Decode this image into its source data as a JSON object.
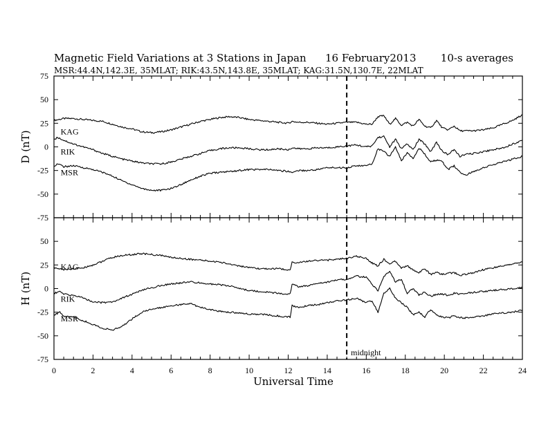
{
  "chart_data": {
    "type": "line",
    "title": "Magnetic Field Variations at 3 Stations in Japan",
    "date": "16  February2013",
    "averaging": "10-s averages",
    "subtitle": "MSR:44.4N,142.3E, 35MLAT;   RIK:43.5N,143.8E, 35MLAT;   KAG:31.5N,130.7E, 22MLAT",
    "xlabel": "Universal Time",
    "xlim": [
      0,
      24
    ],
    "xticks": [
      0,
      2,
      4,
      6,
      8,
      10,
      12,
      14,
      16,
      18,
      20,
      22,
      24
    ],
    "marker": {
      "x": 15,
      "label": "midnight"
    },
    "panels": [
      {
        "ylabel": "D (nT)",
        "ylim": [
          -75,
          75
        ],
        "yticks": [
          -75,
          -50,
          -25,
          0,
          25,
          50,
          75
        ],
        "series": [
          {
            "name": "KAG",
            "label_x": 0.2,
            "label_y": 16,
            "x": [
              0,
              0.5,
              1,
              1.5,
              2,
              2.5,
              3,
              3.5,
              4,
              4.5,
              5,
              5.5,
              6,
              6.5,
              7,
              7.5,
              8,
              8.5,
              9,
              9.5,
              10,
              10.5,
              11,
              11.5,
              12,
              12.2,
              12.5,
              13,
              13.5,
              14,
              14.5,
              15,
              15.5,
              16,
              16.3,
              16.6,
              16.9,
              17.2,
              17.5,
              17.8,
              18.1,
              18.4,
              18.7,
              19,
              19.3,
              19.6,
              19.9,
              20.2,
              20.5,
              20.8,
              21.1,
              21.5,
              22,
              22.5,
              23,
              23.5,
              24
            ],
            "y": [
              28,
              30,
              30,
              29,
              28,
              27,
              24,
              21,
              19,
              16,
              15,
              16,
              18,
              21,
              24,
              27,
              29,
              31,
              32,
              31,
              29,
              28,
              27,
              26,
              25,
              27,
              26,
              26,
              25,
              24,
              25,
              26,
              26,
              24,
              24,
              32,
              33,
              24,
              30,
              23,
              26,
              22,
              29,
              22,
              20,
              28,
              20,
              18,
              22,
              17,
              17,
              17,
              18,
              20,
              24,
              28,
              34
            ]
          },
          {
            "name": "RIK",
            "label_x": 0.2,
            "label_y": -5,
            "x": [
              0,
              0.2,
              0.5,
              1,
              1.5,
              2,
              2.5,
              3,
              3.5,
              4,
              4.5,
              5,
              5.5,
              6,
              6.5,
              7,
              7.5,
              8,
              8.5,
              9,
              9.5,
              10,
              10.5,
              11,
              11.5,
              12,
              12.2,
              12.5,
              13,
              13.5,
              14,
              14.5,
              15,
              15.5,
              16,
              16.3,
              16.6,
              16.9,
              17.2,
              17.5,
              17.8,
              18.1,
              18.4,
              18.7,
              19,
              19.3,
              19.6,
              19.9,
              20.2,
              20.5,
              20.8,
              21.1,
              21.5,
              22,
              22.5,
              23,
              23.5,
              24
            ],
            "y": [
              8,
              10,
              7,
              3,
              0,
              -3,
              -7,
              -10,
              -13,
              -15,
              -17,
              -18,
              -18,
              -16,
              -13,
              -10,
              -7,
              -4,
              -2,
              -1,
              -1,
              -2,
              -3,
              -3,
              -2,
              -3,
              -1,
              -2,
              -2,
              -1,
              -1,
              0,
              1,
              2,
              0,
              1,
              10,
              11,
              0,
              8,
              -2,
              3,
              -3,
              8,
              3,
              -5,
              5,
              -5,
              -8,
              -3,
              -10,
              -8,
              -7,
              -5,
              -3,
              -1,
              3,
              7
            ]
          },
          {
            "name": "MSR",
            "label_x": 0.2,
            "label_y": -27,
            "x": [
              0,
              0.2,
              0.5,
              1,
              1.5,
              2,
              2.5,
              3,
              3.5,
              4,
              4.5,
              5,
              5.5,
              6,
              6.5,
              7,
              7.5,
              8,
              8.5,
              9,
              9.5,
              10,
              10.5,
              11,
              11.5,
              12,
              12.2,
              12.5,
              13,
              13.5,
              14,
              14.5,
              15,
              15.5,
              16,
              16.3,
              16.6,
              16.9,
              17.2,
              17.5,
              17.8,
              18.1,
              18.4,
              18.7,
              19,
              19.3,
              19.6,
              19.9,
              20.2,
              20.5,
              20.8,
              21.1,
              21.5,
              22,
              22.5,
              23,
              23.5,
              24
            ],
            "y": [
              -20,
              -18,
              -21,
              -20,
              -22,
              -24,
              -27,
              -31,
              -36,
              -40,
              -44,
              -46,
              -46,
              -44,
              -40,
              -35,
              -31,
              -28,
              -27,
              -26,
              -25,
              -24,
              -24,
              -24,
              -25,
              -26,
              -27,
              -25,
              -25,
              -24,
              -22,
              -22,
              -22,
              -20,
              -20,
              -18,
              -2,
              -5,
              -10,
              0,
              -15,
              -6,
              -12,
              -1,
              -8,
              -16,
              -14,
              -16,
              -24,
              -20,
              -27,
              -30,
              -26,
              -22,
              -19,
              -16,
              -13,
              -10
            ]
          }
        ]
      },
      {
        "ylabel": "H (nT)",
        "ylim": [
          -75,
          75
        ],
        "yticks": [
          -75,
          -50,
          -25,
          0,
          25,
          50,
          75
        ],
        "series": [
          {
            "name": "KAG",
            "label_x": 0.2,
            "label_y": 23,
            "x": [
              0,
              0.5,
              1,
              1.5,
              2,
              2.5,
              3,
              3.5,
              4,
              4.5,
              5,
              5.5,
              6,
              6.5,
              7,
              7.5,
              8,
              8.5,
              9,
              9.5,
              10,
              10.5,
              11,
              11.5,
              12,
              12.1,
              12.2,
              12.5,
              13,
              13.5,
              14,
              14.5,
              15,
              15.5,
              16,
              16.3,
              16.6,
              16.9,
              17.2,
              17.5,
              17.8,
              18.1,
              18.4,
              18.7,
              19,
              19.3,
              19.6,
              19.9,
              20.2,
              20.5,
              20.8,
              21.1,
              21.5,
              22,
              22.5,
              23,
              23.5,
              24
            ],
            "y": [
              22,
              20,
              21,
              22,
              25,
              29,
              33,
              35,
              36,
              37,
              36,
              35,
              33,
              32,
              31,
              30,
              29,
              28,
              26,
              24,
              22,
              21,
              21,
              21,
              20,
              20,
              28,
              27,
              29,
              30,
              30,
              31,
              32,
              34,
              32,
              27,
              24,
              31,
              26,
              29,
              22,
              24,
              20,
              17,
              21,
              15,
              17,
              15,
              16,
              17,
              14,
              15,
              17,
              20,
              22,
              24,
              26,
              28
            ]
          },
          {
            "name": "RIK",
            "label_x": 0.2,
            "label_y": -11,
            "x": [
              0,
              0.3,
              0.5,
              1,
              1.5,
              2,
              2.5,
              3,
              3.5,
              4,
              4.5,
              5,
              5.5,
              6,
              6.5,
              7,
              7.5,
              8,
              8.5,
              9,
              9.5,
              10,
              10.5,
              11,
              11.5,
              12,
              12.1,
              12.2,
              12.5,
              13,
              13.5,
              14,
              14.5,
              15,
              15.5,
              16,
              16.3,
              16.6,
              16.9,
              17.2,
              17.5,
              17.8,
              18.1,
              18.4,
              18.7,
              19,
              19.3,
              19.6,
              19.9,
              20.2,
              20.5,
              20.8,
              21.1,
              21.5,
              22,
              22.5,
              23,
              23.5,
              24
            ],
            "y": [
              -5,
              -3,
              -6,
              -7,
              -10,
              -14,
              -15,
              -14,
              -10,
              -6,
              -2,
              1,
              3,
              5,
              6,
              7,
              6,
              5,
              4,
              3,
              0,
              -2,
              -3,
              -4,
              -5,
              -6,
              -6,
              5,
              2,
              3,
              5,
              7,
              9,
              10,
              13,
              12,
              4,
              -2,
              13,
              18,
              7,
              10,
              -5,
              0,
              -7,
              -4,
              -8,
              -6,
              -6,
              -7,
              -5,
              -6,
              -5,
              -4,
              -3,
              -2,
              -1,
              0,
              1
            ]
          },
          {
            "name": "MSR",
            "label_x": 0.2,
            "label_y": -32,
            "x": [
              0,
              0.3,
              0.5,
              1,
              1.5,
              2,
              2.5,
              3,
              3.5,
              4,
              4.5,
              5,
              5.5,
              6,
              6.5,
              7,
              7.5,
              8,
              8.5,
              9,
              9.5,
              10,
              10.5,
              11,
              11.5,
              12,
              12.1,
              12.2,
              12.5,
              13,
              13.5,
              14,
              14.5,
              15,
              15.5,
              16,
              16.3,
              16.6,
              16.9,
              17.2,
              17.5,
              17.8,
              18.1,
              18.4,
              18.7,
              19,
              19.3,
              19.6,
              19.9,
              20.2,
              20.5,
              20.8,
              21.1,
              21.5,
              22,
              22.5,
              23,
              23.5,
              24
            ],
            "y": [
              -28,
              -25,
              -29,
              -30,
              -34,
              -38,
              -42,
              -44,
              -40,
              -32,
              -25,
              -22,
              -20,
              -18,
              -17,
              -16,
              -20,
              -22,
              -24,
              -25,
              -26,
              -27,
              -27,
              -28,
              -29,
              -30,
              -30,
              -18,
              -20,
              -18,
              -17,
              -15,
              -13,
              -12,
              -10,
              -15,
              -13,
              -25,
              -5,
              0,
              -10,
              -15,
              -20,
              -28,
              -25,
              -30,
              -22,
              -28,
              -30,
              -31,
              -29,
              -31,
              -31,
              -30,
              -29,
              -27,
              -26,
              -25,
              -23
            ]
          }
        ]
      }
    ]
  }
}
